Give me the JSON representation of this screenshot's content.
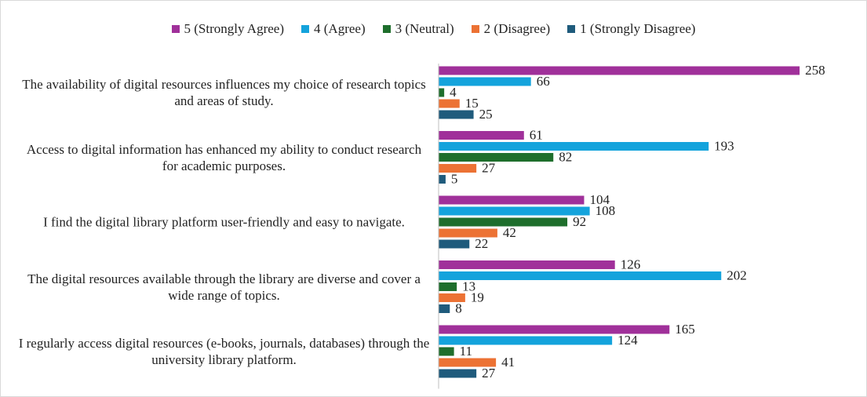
{
  "chart_data": {
    "type": "hbar",
    "categories": [
      "The availability of digital resources influences my choice of research topics and areas of study.",
      "Access to digital information has enhanced my ability to conduct research for academic purposes.",
      "I find the digital library platform user-friendly and easy to navigate.",
      "The digital resources available through the library are diverse and cover a wide range of topics.",
      "I regularly access digital resources (e-books, journals, databases) through the university library platform."
    ],
    "series": [
      {
        "name": "5 (Strongly Agree)",
        "color": "#a0309a",
        "values": [
          258,
          61,
          104,
          126,
          165
        ]
      },
      {
        "name": "4 (Agree)",
        "color": "#14a3dc",
        "values": [
          66,
          193,
          108,
          202,
          124
        ]
      },
      {
        "name": "3 (Neutral)",
        "color": "#1e6e2c",
        "values": [
          4,
          82,
          92,
          13,
          11
        ]
      },
      {
        "name": "2 (Disagree)",
        "color": "#ec7234",
        "values": [
          15,
          27,
          42,
          19,
          41
        ]
      },
      {
        "name": "1 (Strongly Disagree)",
        "color": "#1f5b7c",
        "values": [
          25,
          5,
          22,
          8,
          27
        ]
      }
    ],
    "xlim": [
      0,
      300
    ],
    "legend": "top"
  }
}
